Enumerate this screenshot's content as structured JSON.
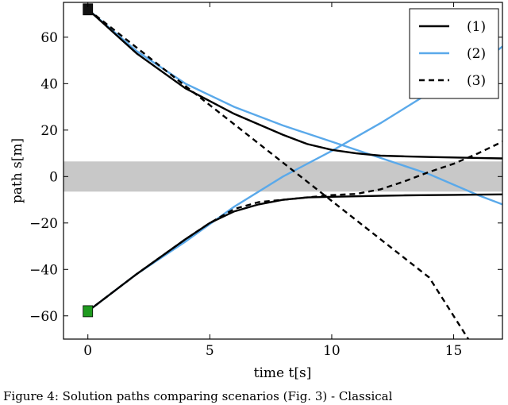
{
  "chart_data": {
    "type": "line",
    "title": "",
    "xlabel": "time t[s]",
    "ylabel": "path s[m]",
    "xlim": [
      -1,
      17
    ],
    "ylim": [
      -70,
      75
    ],
    "xticks": [
      0,
      5,
      10,
      15
    ],
    "yticks": [
      -60,
      -40,
      -20,
      0,
      20,
      40,
      60
    ],
    "grid": false,
    "legend_position": "top-right",
    "band": {
      "y0": -6.5,
      "y1": 6.5,
      "color": "#c8c8c8"
    },
    "markers": [
      {
        "name": "start-top",
        "x": 0,
        "y": 72,
        "color": "#111111"
      },
      {
        "name": "start-bottom",
        "x": 0,
        "y": -58,
        "color": "#1f9a1f"
      }
    ],
    "series": [
      {
        "name": "(1)",
        "color": "#000000",
        "dash": "solid",
        "segments": [
          [
            [
              0,
              72
            ],
            [
              2,
              53
            ],
            [
              4,
              38
            ],
            [
              6,
              27
            ],
            [
              8,
              18
            ],
            [
              9,
              14
            ],
            [
              10,
              11.5
            ],
            [
              11,
              10
            ],
            [
              12,
              9
            ],
            [
              13,
              8.7
            ],
            [
              14,
              8.4
            ],
            [
              15,
              8.2
            ],
            [
              16,
              8
            ],
            [
              17,
              7.8
            ]
          ],
          [
            [
              0,
              -58
            ],
            [
              2,
              -42
            ],
            [
              4,
              -27
            ],
            [
              5,
              -20
            ],
            [
              6,
              -15
            ],
            [
              7,
              -12
            ],
            [
              8,
              -10
            ],
            [
              9,
              -9
            ],
            [
              10,
              -8.7
            ],
            [
              11,
              -8.5
            ],
            [
              12,
              -8.3
            ],
            [
              13,
              -8.1
            ],
            [
              14,
              -8
            ],
            [
              15,
              -7.9
            ],
            [
              16,
              -7.8
            ],
            [
              17,
              -7.7
            ]
          ]
        ]
      },
      {
        "name": "(2)",
        "color": "#5aa9ea",
        "dash": "solid",
        "segments": [
          [
            [
              0,
              72
            ],
            [
              2,
              54
            ],
            [
              4,
              40
            ],
            [
              6,
              30
            ],
            [
              8,
              22
            ],
            [
              10,
              15
            ],
            [
              12,
              8
            ],
            [
              14,
              1
            ],
            [
              16,
              -8
            ],
            [
              17,
              -12
            ]
          ],
          [
            [
              0,
              -58
            ],
            [
              2,
              -42
            ],
            [
              4,
              -28
            ],
            [
              6,
              -13
            ],
            [
              8,
              0
            ],
            [
              10,
              11
            ],
            [
              12,
              23
            ],
            [
              14,
              36
            ],
            [
              16,
              48
            ],
            [
              17,
              56
            ]
          ]
        ]
      },
      {
        "name": "(3)",
        "color": "#000000",
        "dash": "dashed",
        "segments": [
          [
            [
              0,
              72
            ],
            [
              2,
              55.5
            ],
            [
              4,
              39
            ],
            [
              6,
              22.5
            ],
            [
              8,
              6
            ],
            [
              10,
              -10.5
            ],
            [
              12,
              -27
            ],
            [
              14,
              -43.5
            ],
            [
              15.6,
              -70
            ]
          ],
          [
            [
              0,
              -58
            ],
            [
              2,
              -42
            ],
            [
              4,
              -27
            ],
            [
              5,
              -20
            ],
            [
              6,
              -14
            ],
            [
              7,
              -11
            ],
            [
              8,
              -10
            ],
            [
              9,
              -9
            ],
            [
              10,
              -8
            ],
            [
              11,
              -7.5
            ],
            [
              12,
              -5.5
            ],
            [
              13,
              -2
            ],
            [
              14,
              2
            ],
            [
              15,
              5.5
            ],
            [
              16,
              10
            ],
            [
              17,
              15
            ]
          ]
        ]
      }
    ]
  },
  "caption": "Figure 4: Solution paths comparing scenarios (Fig. 3) - Classical"
}
